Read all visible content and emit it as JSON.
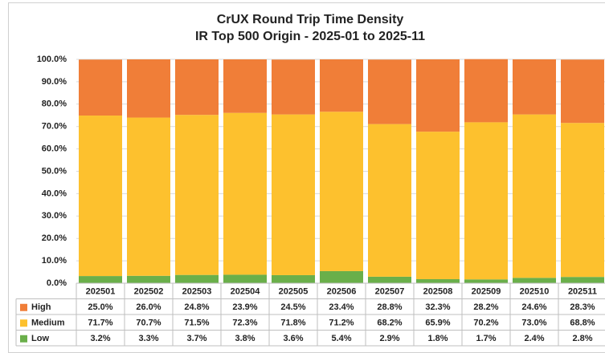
{
  "chart_data": {
    "type": "stacked_bar",
    "title": "CrUX Round Trip Time Density",
    "subtitle": "IR Top 500 Origin - 2025-01 to 2025-11",
    "categories": [
      "202501",
      "202502",
      "202503",
      "202504",
      "202505",
      "202506",
      "202507",
      "202508",
      "202509",
      "202510",
      "202511"
    ],
    "series": [
      {
        "name": "High",
        "color": "#f07e38",
        "values": [
          25.0,
          26.0,
          24.8,
          23.9,
          24.5,
          23.4,
          28.8,
          32.3,
          28.2,
          24.6,
          28.3
        ],
        "value_labels": [
          "25.0%",
          "26.0%",
          "24.8%",
          "23.9%",
          "24.5%",
          "23.4%",
          "28.8%",
          "32.3%",
          "28.2%",
          "24.6%",
          "28.3%"
        ]
      },
      {
        "name": "Medium",
        "color": "#fdc12e",
        "values": [
          71.7,
          70.7,
          71.5,
          72.3,
          71.8,
          71.2,
          68.2,
          65.9,
          70.2,
          73.0,
          68.8
        ],
        "value_labels": [
          "71.7%",
          "70.7%",
          "71.5%",
          "72.3%",
          "71.8%",
          "71.2%",
          "68.2%",
          "65.9%",
          "70.2%",
          "73.0%",
          "68.8%"
        ]
      },
      {
        "name": "Low",
        "color": "#6aaf4a",
        "values": [
          3.2,
          3.3,
          3.7,
          3.8,
          3.6,
          5.4,
          2.9,
          1.8,
          1.7,
          2.4,
          2.8
        ],
        "value_labels": [
          "3.2%",
          "3.3%",
          "3.7%",
          "3.8%",
          "3.6%",
          "5.4%",
          "2.9%",
          "1.8%",
          "1.7%",
          "2.4%",
          "2.8%"
        ]
      }
    ],
    "ylim": [
      0,
      100
    ],
    "yticks": [
      {
        "value": 0,
        "label": "0.0%"
      },
      {
        "value": 10,
        "label": "10.0%"
      },
      {
        "value": 20,
        "label": "20.0%"
      },
      {
        "value": 30,
        "label": "30.0%"
      },
      {
        "value": 40,
        "label": "40.0%"
      },
      {
        "value": 50,
        "label": "50.0%"
      },
      {
        "value": 60,
        "label": "60.0%"
      },
      {
        "value": 70,
        "label": "70.0%"
      },
      {
        "value": 80,
        "label": "80.0%"
      },
      {
        "value": 90,
        "label": "90.0%"
      },
      {
        "value": 100,
        "label": "100.0%"
      }
    ],
    "grid": true
  }
}
